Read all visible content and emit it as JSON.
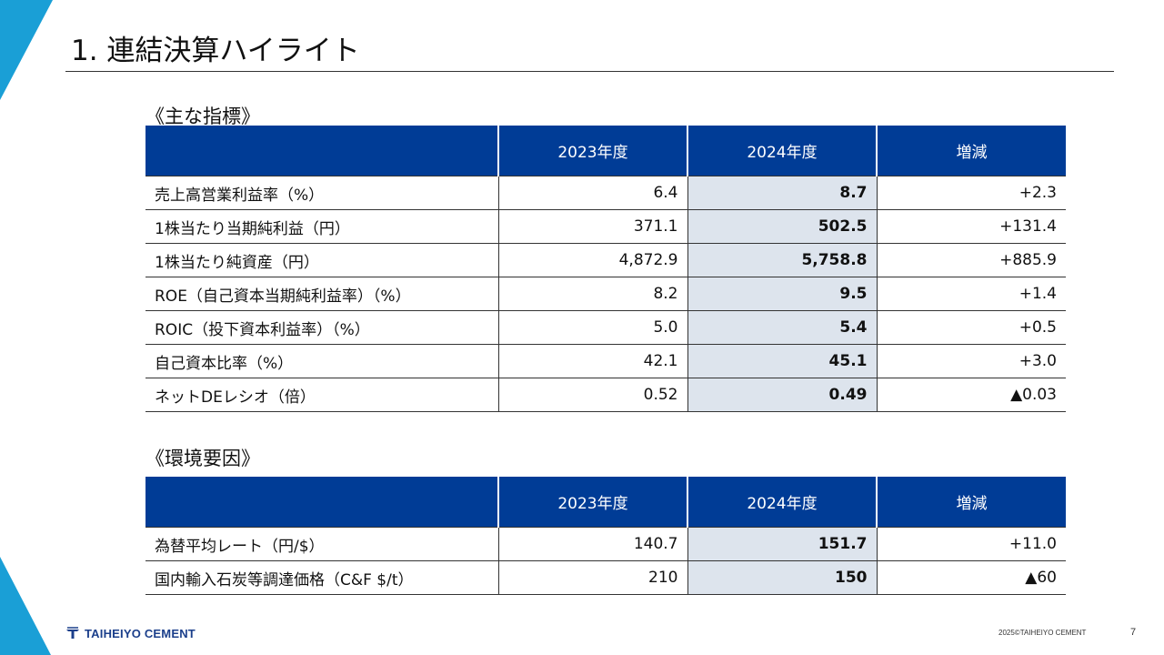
{
  "slide": {
    "title": "1. 連結決算ハイライト",
    "page_number": "7",
    "copyright": "2025©TAIHEIYO CEMENT",
    "logo_text": "TAIHEIYO CEMENT",
    "colors": {
      "accent": "#1a9fd6",
      "header": "#003c96",
      "highlight": "#dde4ed"
    }
  },
  "main_indicators": {
    "title": "《主な指標》",
    "headers": [
      "",
      "2023年度",
      "2024年度",
      "増減"
    ],
    "rows": [
      [
        "売上高営業利益率（%）",
        "6.4",
        "8.7",
        "+2.3"
      ],
      [
        "1株当たり当期純利益（円）",
        "371.1",
        "502.5",
        "+131.4"
      ],
      [
        "1株当たり純資産（円）",
        "4,872.9",
        "5,758.8",
        "+885.9"
      ],
      [
        "ROE（自己資本当期純利益率）（%）",
        "8.2",
        "9.5",
        "+1.4"
      ],
      [
        "ROIC（投下資本利益率）（%）",
        "5.0",
        "5.4",
        "+0.5"
      ],
      [
        "自己資本比率（%）",
        "42.1",
        "45.1",
        "+3.0"
      ],
      [
        "ネットDEレシオ（倍）",
        "0.52",
        "0.49",
        "▲0.03"
      ]
    ]
  },
  "environment_factors": {
    "title": "《環境要因》",
    "headers": [
      "",
      "2023年度",
      "2024年度",
      "増減"
    ],
    "rows": [
      [
        "為替平均レート（円/$）",
        "140.7",
        "151.7",
        "+11.0"
      ],
      [
        "国内輸入石炭等調達価格（C&F $/t）",
        "210",
        "150",
        "▲60"
      ]
    ]
  }
}
